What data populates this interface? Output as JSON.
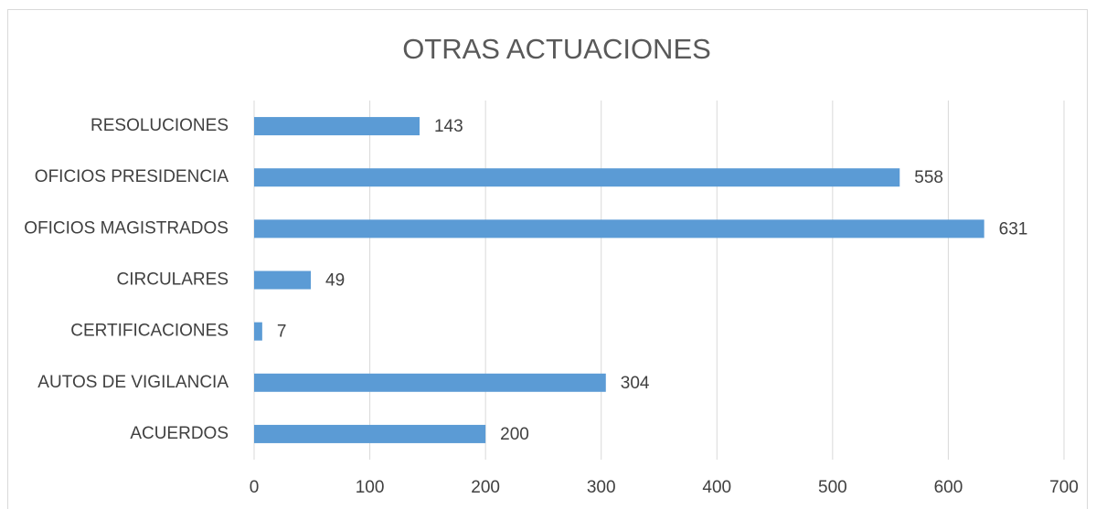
{
  "chart_data": {
    "type": "bar",
    "orientation": "horizontal",
    "title": "OTRAS ACTUACIONES",
    "categories": [
      "RESOLUCIONES",
      "OFICIOS PRESIDENCIA",
      "OFICIOS MAGISTRADOS",
      "CIRCULARES",
      "CERTIFICACIONES",
      "AUTOS DE VIGILANCIA",
      "ACUERDOS"
    ],
    "values": [
      143,
      558,
      631,
      49,
      7,
      304,
      200
    ],
    "color": "#5b9bd5",
    "xlim": [
      0,
      700
    ],
    "xticks": [
      0,
      100,
      200,
      300,
      400,
      500,
      600,
      700
    ],
    "grid": true
  }
}
